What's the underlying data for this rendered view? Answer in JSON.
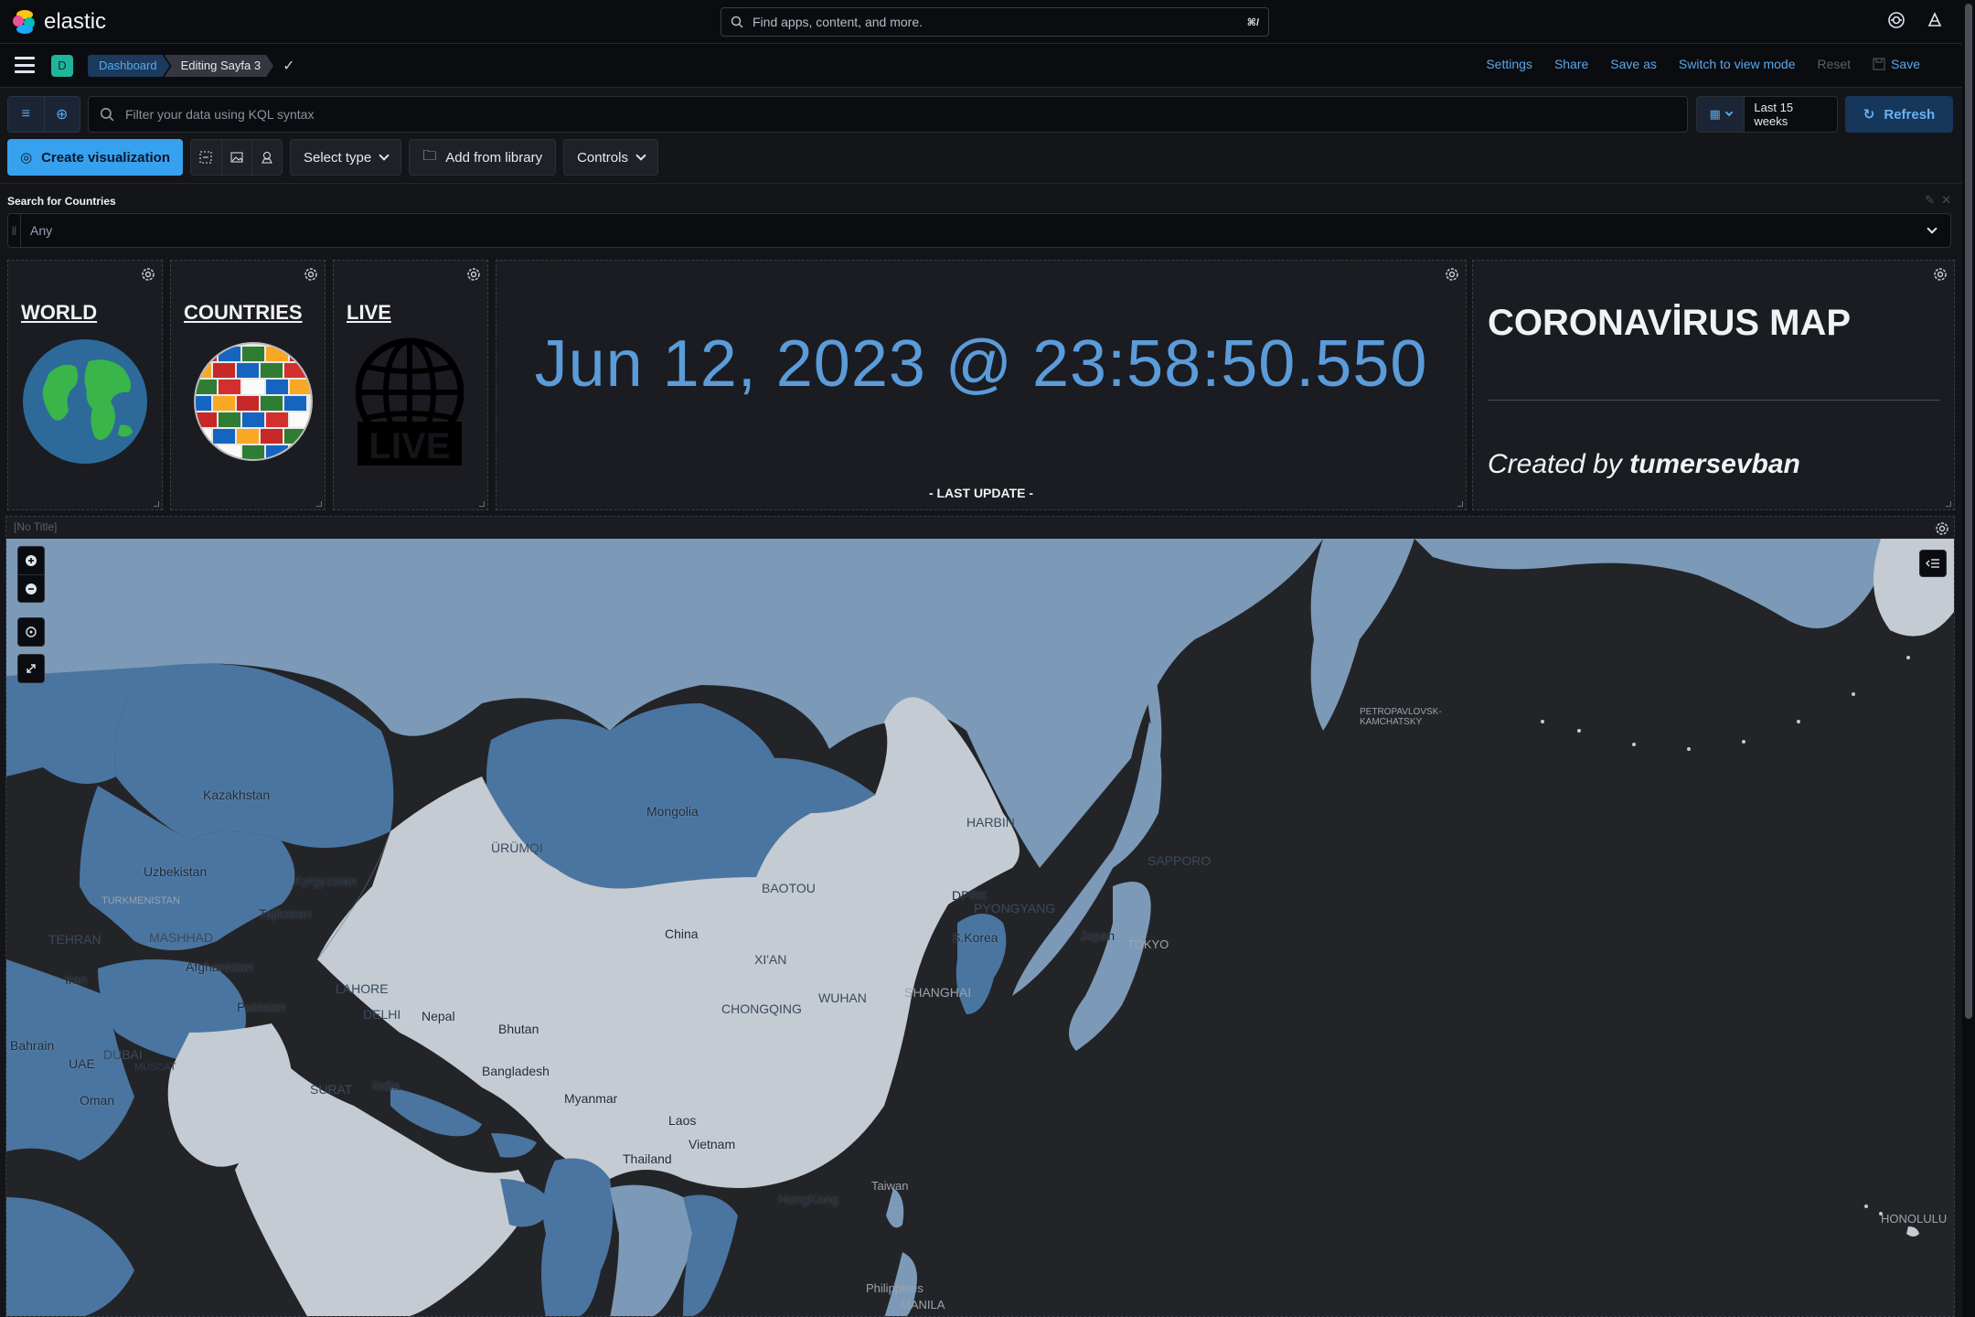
{
  "topbar": {
    "brand": "elastic",
    "search_placeholder": "Find apps, content, and more.",
    "search_shortcut": "⌘/"
  },
  "appbar": {
    "space_initial": "D",
    "breadcrumbs": [
      "Dashboard",
      "Editing Sayfa 3"
    ],
    "actions": {
      "settings": "Settings",
      "share": "Share",
      "save_as": "Save as",
      "switch_view": "Switch to view mode",
      "reset": "Reset",
      "save": "Save"
    }
  },
  "query": {
    "kql_placeholder": "Filter your data using KQL syntax",
    "date_range": "Last 15 weeks",
    "refresh_label": "Refresh"
  },
  "toolbar": {
    "create_visualization": "Create visualization",
    "select_type": "Select type",
    "add_from_library": "Add from library",
    "controls": "Controls"
  },
  "controls": {
    "label": "Search for Countries",
    "value": "Any"
  },
  "panels": {
    "world": {
      "title": "WORLD"
    },
    "countries": {
      "title": "COUNTRIES"
    },
    "live": {
      "title": "LIVE",
      "badge": "LIVE"
    },
    "timestamp": {
      "value": "Jun 12, 2023 @ 23:58:50.550",
      "caption": "- LAST UPDATE -"
    },
    "corona": {
      "title": "CORONAVİRUS MAP",
      "credit_prefix": "Created by",
      "credit_name": "tumersevban"
    }
  },
  "map": {
    "title": "[No Title]",
    "labels": {
      "kazakhstan": "Kazakhstan",
      "mongolia": "Mongolia",
      "china": "China",
      "uzbekistan": "Uzbekistan",
      "kyrgyzstan": "Kyrgyzstan",
      "tajikistan": "Tajikistan",
      "turkmenistan": "TURKMENISTAN",
      "afghanistan": "Afghanistan",
      "iran": "Iran",
      "pakistan": "Pakistan",
      "india": "India",
      "nepal": "Nepal",
      "bhutan": "Bhutan",
      "bangladesh": "Bangladesh",
      "myanmar": "Myanmar",
      "laos": "Laos",
      "vietnam": "Vietnam",
      "thailand": "Thailand",
      "oman": "Oman",
      "uae": "UAE",
      "bahrain": "Bahrain",
      "japan": "Japan",
      "skorea": "S.Korea",
      "dprk": "DPRK",
      "taiwan": "Taiwan",
      "philippines": "Philippines",
      "hongkong": "HongKong"
    },
    "cities": {
      "urumqi": "ÜRÜMQI",
      "harbin": "HARBIN",
      "baotou": "BAOTOU",
      "pyongyang": "PYONGYANG",
      "shanghai": "SHANGHAI",
      "wuhan": "WUHAN",
      "chongqing": "CHONGQING",
      "xian": "XI'AN",
      "tokyo": "TOKYO",
      "sapporo": "SAPPORO",
      "tehran": "TEHRAN",
      "mashhad": "MASHHAD",
      "lahore": "LAHORE",
      "delhi": "DELHI",
      "surat": "SURAT",
      "dubai": "DUBAI",
      "muscat": "MUSCAT",
      "honolulu": "HONOLULU",
      "manila": "MANILA",
      "petropavlovsk": "PETROPAVLOVSK-KAMCHATSKY"
    }
  },
  "colors": {
    "accent": "#36a2ef",
    "link": "#5aa7ea",
    "map_light": "#c4cbd3",
    "map_mid": "#7c9ab8",
    "map_dark": "#4a75a0",
    "ocean": "#232428"
  }
}
